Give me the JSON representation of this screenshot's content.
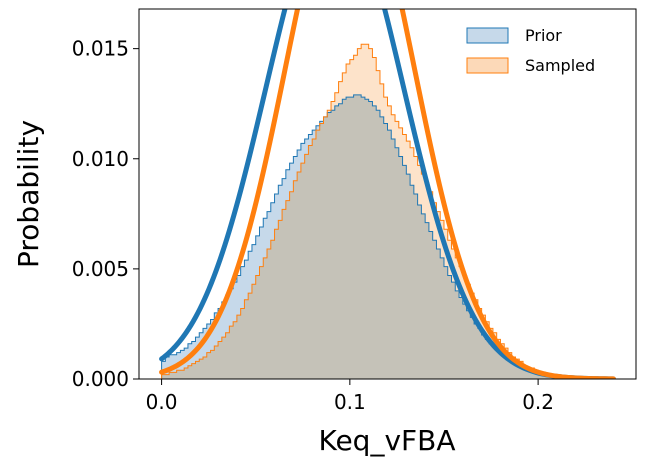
{
  "chart_data": {
    "type": "histogram",
    "xlabel": "Keq_vFBA",
    "ylabel": "Probability",
    "xlim": [
      -0.012,
      0.252
    ],
    "ylim": [
      0,
      0.0168
    ],
    "xticks": [
      0.0,
      0.1,
      0.2
    ],
    "xtick_labels": [
      "0.0",
      "0.1",
      "0.2"
    ],
    "yticks": [
      0.0,
      0.005,
      0.01,
      0.015
    ],
    "ytick_labels": [
      "0.000",
      "0.005",
      "0.010",
      "0.015"
    ],
    "grid": false,
    "legend_position": "top-right",
    "bin_edges_start": 0.0,
    "bin_width": 0.002,
    "series": [
      {
        "name": "Prior",
        "color": "#1f77b4",
        "fill": "#c6d9ea",
        "fit": {
          "mean": 0.092,
          "std": 0.0365
        },
        "values": [
          0.0008,
          0.001,
          0.0011,
          0.0011,
          0.0012,
          0.0013,
          0.0014,
          0.0016,
          0.0017,
          0.0019,
          0.0021,
          0.0023,
          0.0025,
          0.0027,
          0.003,
          0.0032,
          0.0035,
          0.0038,
          0.0041,
          0.0044,
          0.0047,
          0.0051,
          0.0054,
          0.0058,
          0.0061,
          0.0065,
          0.0069,
          0.0073,
          0.0076,
          0.008,
          0.0084,
          0.0088,
          0.0091,
          0.0095,
          0.0098,
          0.0101,
          0.0104,
          0.0107,
          0.0109,
          0.0111,
          0.0113,
          0.0115,
          0.0117,
          0.0119,
          0.0121,
          0.0122,
          0.0124,
          0.0125,
          0.0127,
          0.0128,
          0.0128,
          0.0129,
          0.0129,
          0.0128,
          0.0127,
          0.0126,
          0.0124,
          0.0122,
          0.0119,
          0.0116,
          0.0113,
          0.0109,
          0.0105,
          0.0101,
          0.0097,
          0.0093,
          0.0088,
          0.0084,
          0.0079,
          0.0075,
          0.0071,
          0.0067,
          0.0063,
          0.0059,
          0.0055,
          0.0051,
          0.0047,
          0.0044,
          0.004,
          0.0037,
          0.0034,
          0.0031,
          0.0028,
          0.0025,
          0.0023,
          0.002,
          0.0018,
          0.0016,
          0.0015,
          0.0013,
          0.0011,
          0.001,
          0.0009,
          0.0008,
          0.0007,
          0.0006,
          0.0005,
          0.0004,
          0.0004,
          0.0003,
          0.0003,
          0.0002,
          0.0002,
          0.0002,
          0.0001,
          0.0001,
          0.0001,
          0.0001,
          0.0001,
          0.0001,
          0.0,
          0.0,
          0.0,
          0.0,
          0.0,
          0.0,
          0.0,
          0.0,
          0.0,
          0.0
        ]
      },
      {
        "name": "Sampled",
        "color": "#ff7f0e",
        "fill": "#fcd9b8",
        "fit": {
          "mean": 0.1,
          "std": 0.034
        },
        "values": [
          0.0002,
          0.0002,
          0.0003,
          0.0003,
          0.0004,
          0.0004,
          0.0005,
          0.0006,
          0.0007,
          0.0008,
          0.0009,
          0.001,
          0.0012,
          0.0013,
          0.0015,
          0.0017,
          0.0019,
          0.0021,
          0.0024,
          0.0026,
          0.0029,
          0.0032,
          0.0036,
          0.0039,
          0.0043,
          0.0047,
          0.0051,
          0.0055,
          0.0059,
          0.0063,
          0.0068,
          0.0072,
          0.0077,
          0.0081,
          0.0085,
          0.009,
          0.0094,
          0.0098,
          0.0102,
          0.0106,
          0.0109,
          0.0113,
          0.0116,
          0.0119,
          0.0122,
          0.0126,
          0.013,
          0.0135,
          0.0139,
          0.0143,
          0.0145,
          0.0147,
          0.015,
          0.0152,
          0.0152,
          0.015,
          0.0146,
          0.014,
          0.0134,
          0.0128,
          0.0124,
          0.012,
          0.0117,
          0.0114,
          0.0111,
          0.0108,
          0.0105,
          0.0101,
          0.0097,
          0.0093,
          0.0089,
          0.0085,
          0.008,
          0.0076,
          0.0072,
          0.0068,
          0.0063,
          0.0059,
          0.0055,
          0.0051,
          0.0047,
          0.0043,
          0.0039,
          0.0036,
          0.0032,
          0.0029,
          0.0026,
          0.0023,
          0.0021,
          0.0018,
          0.0016,
          0.0014,
          0.0012,
          0.001,
          0.0009,
          0.0008,
          0.0006,
          0.0005,
          0.0005,
          0.0004,
          0.0003,
          0.0003,
          0.0002,
          0.0002,
          0.0001,
          0.0001,
          0.0001,
          0.0001,
          0.0001,
          0.0,
          0.0,
          0.0,
          0.0,
          0.0,
          0.0,
          0.0,
          0.0,
          0.0,
          0.0,
          0.0
        ]
      }
    ]
  }
}
